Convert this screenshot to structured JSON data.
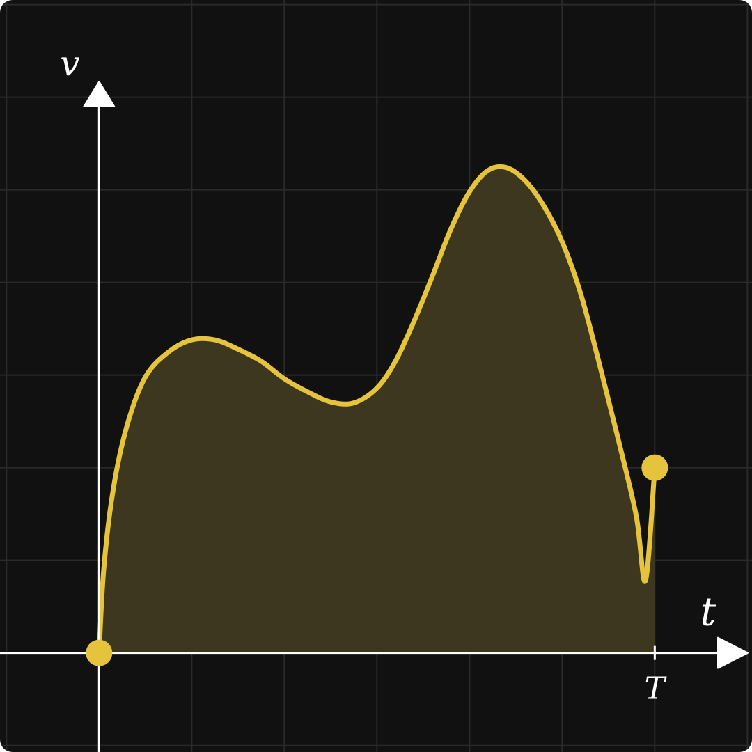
{
  "colors": {
    "background": "#111111",
    "grid": "#2a2a2a",
    "axis": "#ffffff",
    "curve": "#e6c33c",
    "fill": "#3e3720"
  },
  "chart_data": {
    "type": "area",
    "title": "",
    "xlabel": "t",
    "ylabel": "v",
    "tick_labels": {
      "x": [
        "T"
      ]
    },
    "grid": true,
    "xlim": [
      -1.07,
      7.05
    ],
    "ylim": [
      -1.07,
      7.05
    ],
    "series": [
      {
        "x": [
          0,
          0.05,
          0.15,
          0.3,
          0.5,
          0.75,
          1.0,
          1.25,
          1.5,
          1.75,
          2.0,
          2.25,
          2.5,
          2.75,
          3.0,
          3.2,
          3.4,
          3.6,
          3.8,
          4.0,
          4.2,
          4.4,
          4.6,
          4.8,
          5.0,
          5.2,
          5.4,
          5.6,
          5.8,
          5.9,
          6.0
        ],
        "y": [
          0,
          0.9,
          1.75,
          2.45,
          2.98,
          3.25,
          3.38,
          3.38,
          3.28,
          3.15,
          2.96,
          2.82,
          2.71,
          2.7,
          2.86,
          3.15,
          3.58,
          4.07,
          4.58,
          4.98,
          5.21,
          5.24,
          5.1,
          4.83,
          4.44,
          3.88,
          3.13,
          2.33,
          1.48,
          0.78,
          2.0
        ],
        "filled": true
      }
    ],
    "markers": [
      {
        "x": 0,
        "y": 0
      },
      {
        "x": 6.0,
        "y": 2.0
      }
    ],
    "T": 6.0
  }
}
